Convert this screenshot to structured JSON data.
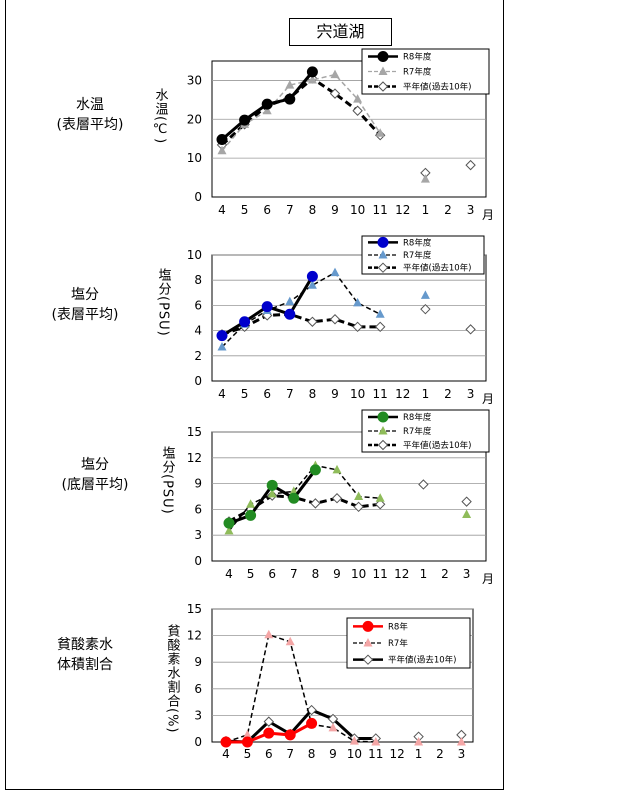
{
  "page_title": "宍道湖",
  "panels": [
    {
      "label_lines": [
        "水温",
        "(表層平均)"
      ]
    },
    {
      "label_lines": [
        "塩分",
        "(表層平均)"
      ]
    },
    {
      "label_lines": [
        "塩分",
        "(底層平均)"
      ]
    },
    {
      "label_lines": [
        "貧酸素水",
        "体積割合"
      ]
    }
  ],
  "chart_data": [
    {
      "type": "line",
      "ylabel": "水温(℃)",
      "ylim": [
        0,
        35
      ],
      "yticks": [
        0,
        10,
        20,
        30
      ],
      "categories": [
        "4",
        "5",
        "6",
        "7",
        "8",
        "9",
        "10",
        "11",
        "12",
        "1",
        "2",
        "3"
      ],
      "x_unit_label": "月",
      "grid": true,
      "legend_position": "top-right",
      "series": [
        {
          "name": "R8年度",
          "color": "#000000",
          "style": "solid-bold",
          "marker": "filled-circle",
          "values": [
            14.8,
            19.8,
            23.9,
            25.2,
            32.2,
            null,
            null,
            null,
            null,
            null,
            null,
            null
          ]
        },
        {
          "name": "R7年度",
          "color": "#a6a6a6",
          "style": "dashed",
          "marker": "triangle",
          "values": [
            11.9,
            18.7,
            22.2,
            28.8,
            30.1,
            31.5,
            25.2,
            16.4,
            null,
            4.6,
            null,
            null
          ]
        },
        {
          "name": "平年値(過去10年)",
          "color": "#000000",
          "style": "dashed-bold",
          "marker": "open-diamond",
          "values": [
            13.4,
            18.7,
            23.5,
            25.5,
            30.5,
            26.6,
            22.2,
            15.9,
            null,
            6.2,
            null,
            8.2
          ]
        }
      ]
    },
    {
      "type": "line",
      "ylabel": "塩分(PSU)",
      "ylim": [
        0,
        10
      ],
      "yticks": [
        0,
        2,
        4,
        6,
        8,
        10
      ],
      "categories": [
        "4",
        "5",
        "6",
        "7",
        "8",
        "9",
        "10",
        "11",
        "12",
        "1",
        "2",
        "3"
      ],
      "x_unit_label": "月",
      "grid": true,
      "legend_position": "top-right",
      "series": [
        {
          "name": "R8年度",
          "color": "#000000",
          "marker_color": "#0000cc",
          "style": "solid-bold",
          "marker": "filled-circle",
          "values": [
            3.6,
            4.7,
            5.9,
            5.3,
            8.3,
            null,
            null,
            null,
            null,
            null,
            null,
            null
          ]
        },
        {
          "name": "R7年度",
          "color": "#000000",
          "marker_color": "#6699cc",
          "style": "dashed",
          "marker": "triangle",
          "values": [
            2.7,
            4.5,
            5.6,
            6.3,
            7.6,
            8.6,
            6.2,
            5.3,
            null,
            6.8,
            null,
            null
          ]
        },
        {
          "name": "平年値(過去10年)",
          "color": "#000000",
          "style": "dashed-bold",
          "marker": "open-diamond",
          "values": [
            3.7,
            4.3,
            5.2,
            5.3,
            4.7,
            4.9,
            4.3,
            4.3,
            null,
            5.7,
            null,
            4.1
          ]
        }
      ]
    },
    {
      "type": "line",
      "ylabel": "塩分(PSU)",
      "ylim": [
        0,
        15
      ],
      "yticks": [
        0,
        3,
        6,
        9,
        12,
        15
      ],
      "categories": [
        "4",
        "5",
        "6",
        "7",
        "8",
        "9",
        "10",
        "11",
        "12",
        "1",
        "2",
        "3"
      ],
      "x_unit_label": "月",
      "grid": true,
      "legend_position": "top-right",
      "series": [
        {
          "name": "R8年度",
          "color": "#000000",
          "marker_color": "#228b22",
          "style": "solid-bold",
          "marker": "filled-circle",
          "values": [
            4.4,
            5.3,
            8.8,
            7.3,
            10.6,
            null,
            null,
            null,
            null,
            null,
            null,
            null
          ]
        },
        {
          "name": "R7年度",
          "color": "#000000",
          "marker_color": "#8fbc5a",
          "style": "dashed",
          "marker": "triangle",
          "values": [
            3.5,
            6.6,
            7.8,
            8.1,
            11.1,
            10.6,
            7.5,
            7.3,
            null,
            null,
            null,
            5.4
          ]
        },
        {
          "name": "平年値(過去10年)",
          "color": "#000000",
          "style": "dashed-bold",
          "marker": "open-diamond",
          "values": [
            4.6,
            6.0,
            7.6,
            7.4,
            6.7,
            7.3,
            6.3,
            6.6,
            null,
            8.9,
            null,
            6.9
          ]
        }
      ]
    },
    {
      "type": "line",
      "ylabel": "貧酸素水割合(%)",
      "ylim": [
        0,
        15
      ],
      "yticks": [
        0,
        3,
        6,
        9,
        12,
        15
      ],
      "categories": [
        "4",
        "5",
        "6",
        "7",
        "8",
        "9",
        "10",
        "11",
        "12",
        "1",
        "2",
        "3"
      ],
      "x_unit_label": "",
      "grid": true,
      "legend_position": "top-right",
      "series": [
        {
          "name": "R8年",
          "color": "#ff0000",
          "style": "solid-bold",
          "marker": "filled-circle",
          "values": [
            0.0,
            0.0,
            1.0,
            0.8,
            2.1,
            null,
            null,
            null,
            null,
            null,
            null,
            null
          ]
        },
        {
          "name": "R7年",
          "color": "#000000",
          "marker_color": "#f4a6a6",
          "style": "dashed",
          "marker": "triangle",
          "values": [
            0.0,
            0.8,
            12.1,
            11.3,
            2.0,
            1.6,
            0.1,
            0.0,
            null,
            0.0,
            null,
            0.0
          ]
        },
        {
          "name": "平年値(過去10年)",
          "color": "#000000",
          "style": "solid-bold",
          "marker": "open-diamond",
          "values": [
            0.1,
            0.0,
            2.3,
            0.9,
            3.6,
            2.6,
            0.4,
            0.4,
            null,
            0.6,
            null,
            0.8
          ]
        }
      ]
    }
  ]
}
